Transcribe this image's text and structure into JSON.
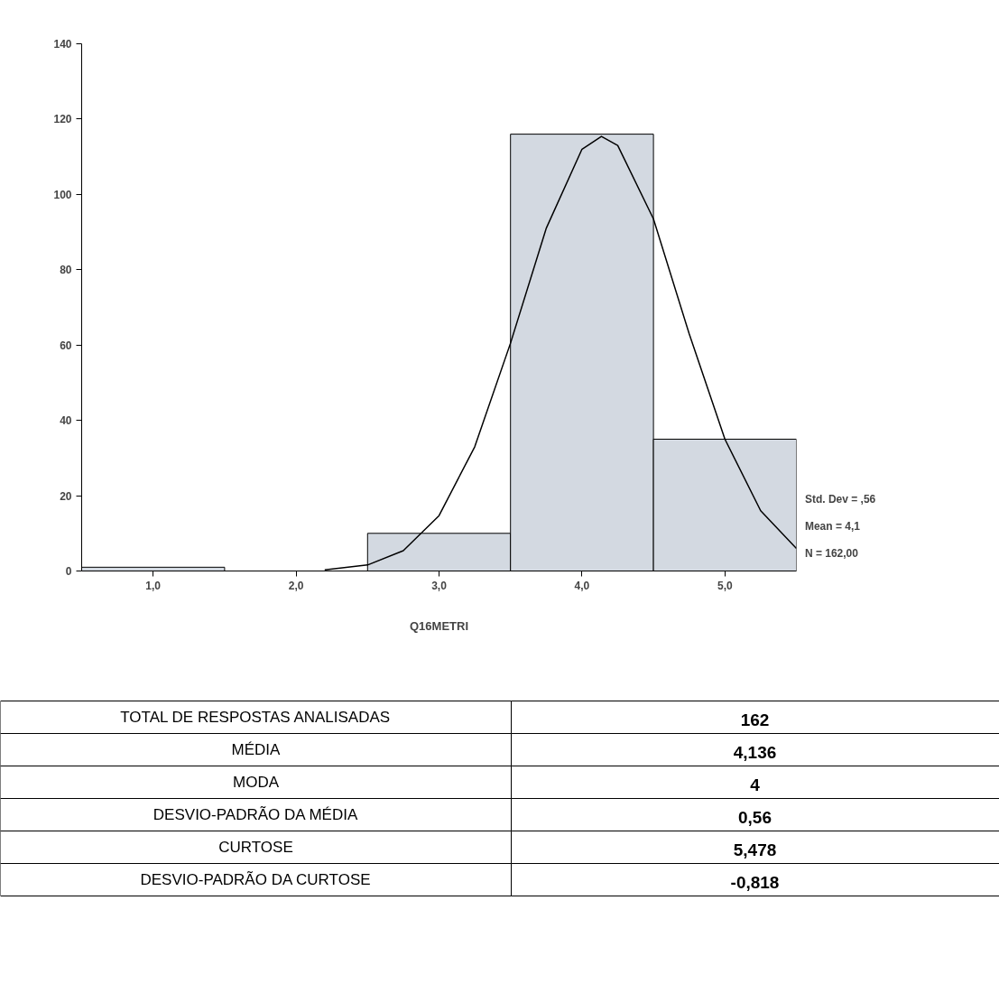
{
  "chart_data": {
    "type": "histogram",
    "bins": [
      0.5,
      1.5,
      2.5,
      3.5,
      4.5,
      5.5
    ],
    "values": [
      1,
      0,
      10,
      116,
      35
    ],
    "color": "#d3d9e1",
    "series": [
      {
        "type": "line",
        "color": "#000000",
        "x": [
          2.2,
          2.5,
          2.75,
          3.0,
          3.25,
          3.5,
          3.75,
          4.0,
          4.136,
          4.25,
          4.5,
          4.75,
          5.0,
          5.25,
          5.5
        ],
        "values": [
          0.3,
          1.6,
          5.4,
          14.7,
          33,
          60.5,
          91,
          112,
          115.4,
          113,
          93.5,
          63,
          35,
          16,
          6
        ]
      }
    ],
    "xlabel": "Q16METRI",
    "xlim": [
      0.5,
      5.5
    ],
    "xticks": [
      {
        "value": 1,
        "label": "1,0"
      },
      {
        "value": 2,
        "label": "2,0"
      },
      {
        "value": 3,
        "label": "3,0"
      },
      {
        "value": 4,
        "label": "4,0"
      },
      {
        "value": 5,
        "label": "5,0"
      }
    ],
    "ylim": [
      0,
      140
    ],
    "yticks": [
      0,
      20,
      40,
      60,
      80,
      100,
      120,
      140
    ],
    "grid": false,
    "annotations": [
      "Std. Dev = ,56",
      "Mean = 4,1",
      "N = 162,00",
      "TOTAL DE RESPOSTAS ANALISADAS",
      "162",
      "MÉDIA",
      "4,136",
      "MODA",
      "4",
      "DESVIO-PADRÃO DA MÉDIA",
      "0,56",
      "CURTOSE",
      "5,478",
      "DESVIO-PADRÃO DA CURTOSE",
      "-0,818"
    ]
  }
}
